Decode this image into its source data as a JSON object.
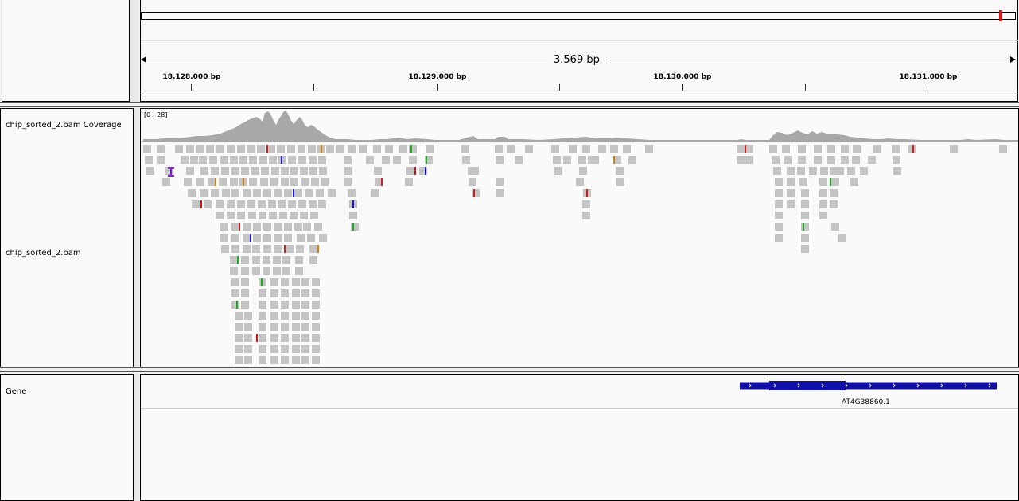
{
  "ruler": {
    "span_label": "3.569 bp",
    "ticks": [
      {
        "label": "18.128.000 bp"
      },
      {
        "label": "18.129.000 bp"
      },
      {
        "label": "18.130.000 bp"
      },
      {
        "label": "18.131.000 bp"
      }
    ]
  },
  "tracks": {
    "coverage": {
      "name": "chip_sorted_2.bam Coverage",
      "data_range": "[0 - 28]"
    },
    "alignments": {
      "name": "chip_sorted_2.bam"
    },
    "gene": {
      "name": "Gene",
      "feature_name": "AT4G38860.1"
    }
  },
  "colors": {
    "coverage": "#a8a8a8",
    "read": "#c4c4c4",
    "gene": "#1010a8",
    "mismatch_a": "#18b018",
    "mismatch_c": "#1818d8",
    "mismatch_g": "#d08000",
    "mismatch_t": "#d81818",
    "insertion": "#8020d0",
    "chromosome_highlight": "#e01010"
  }
}
